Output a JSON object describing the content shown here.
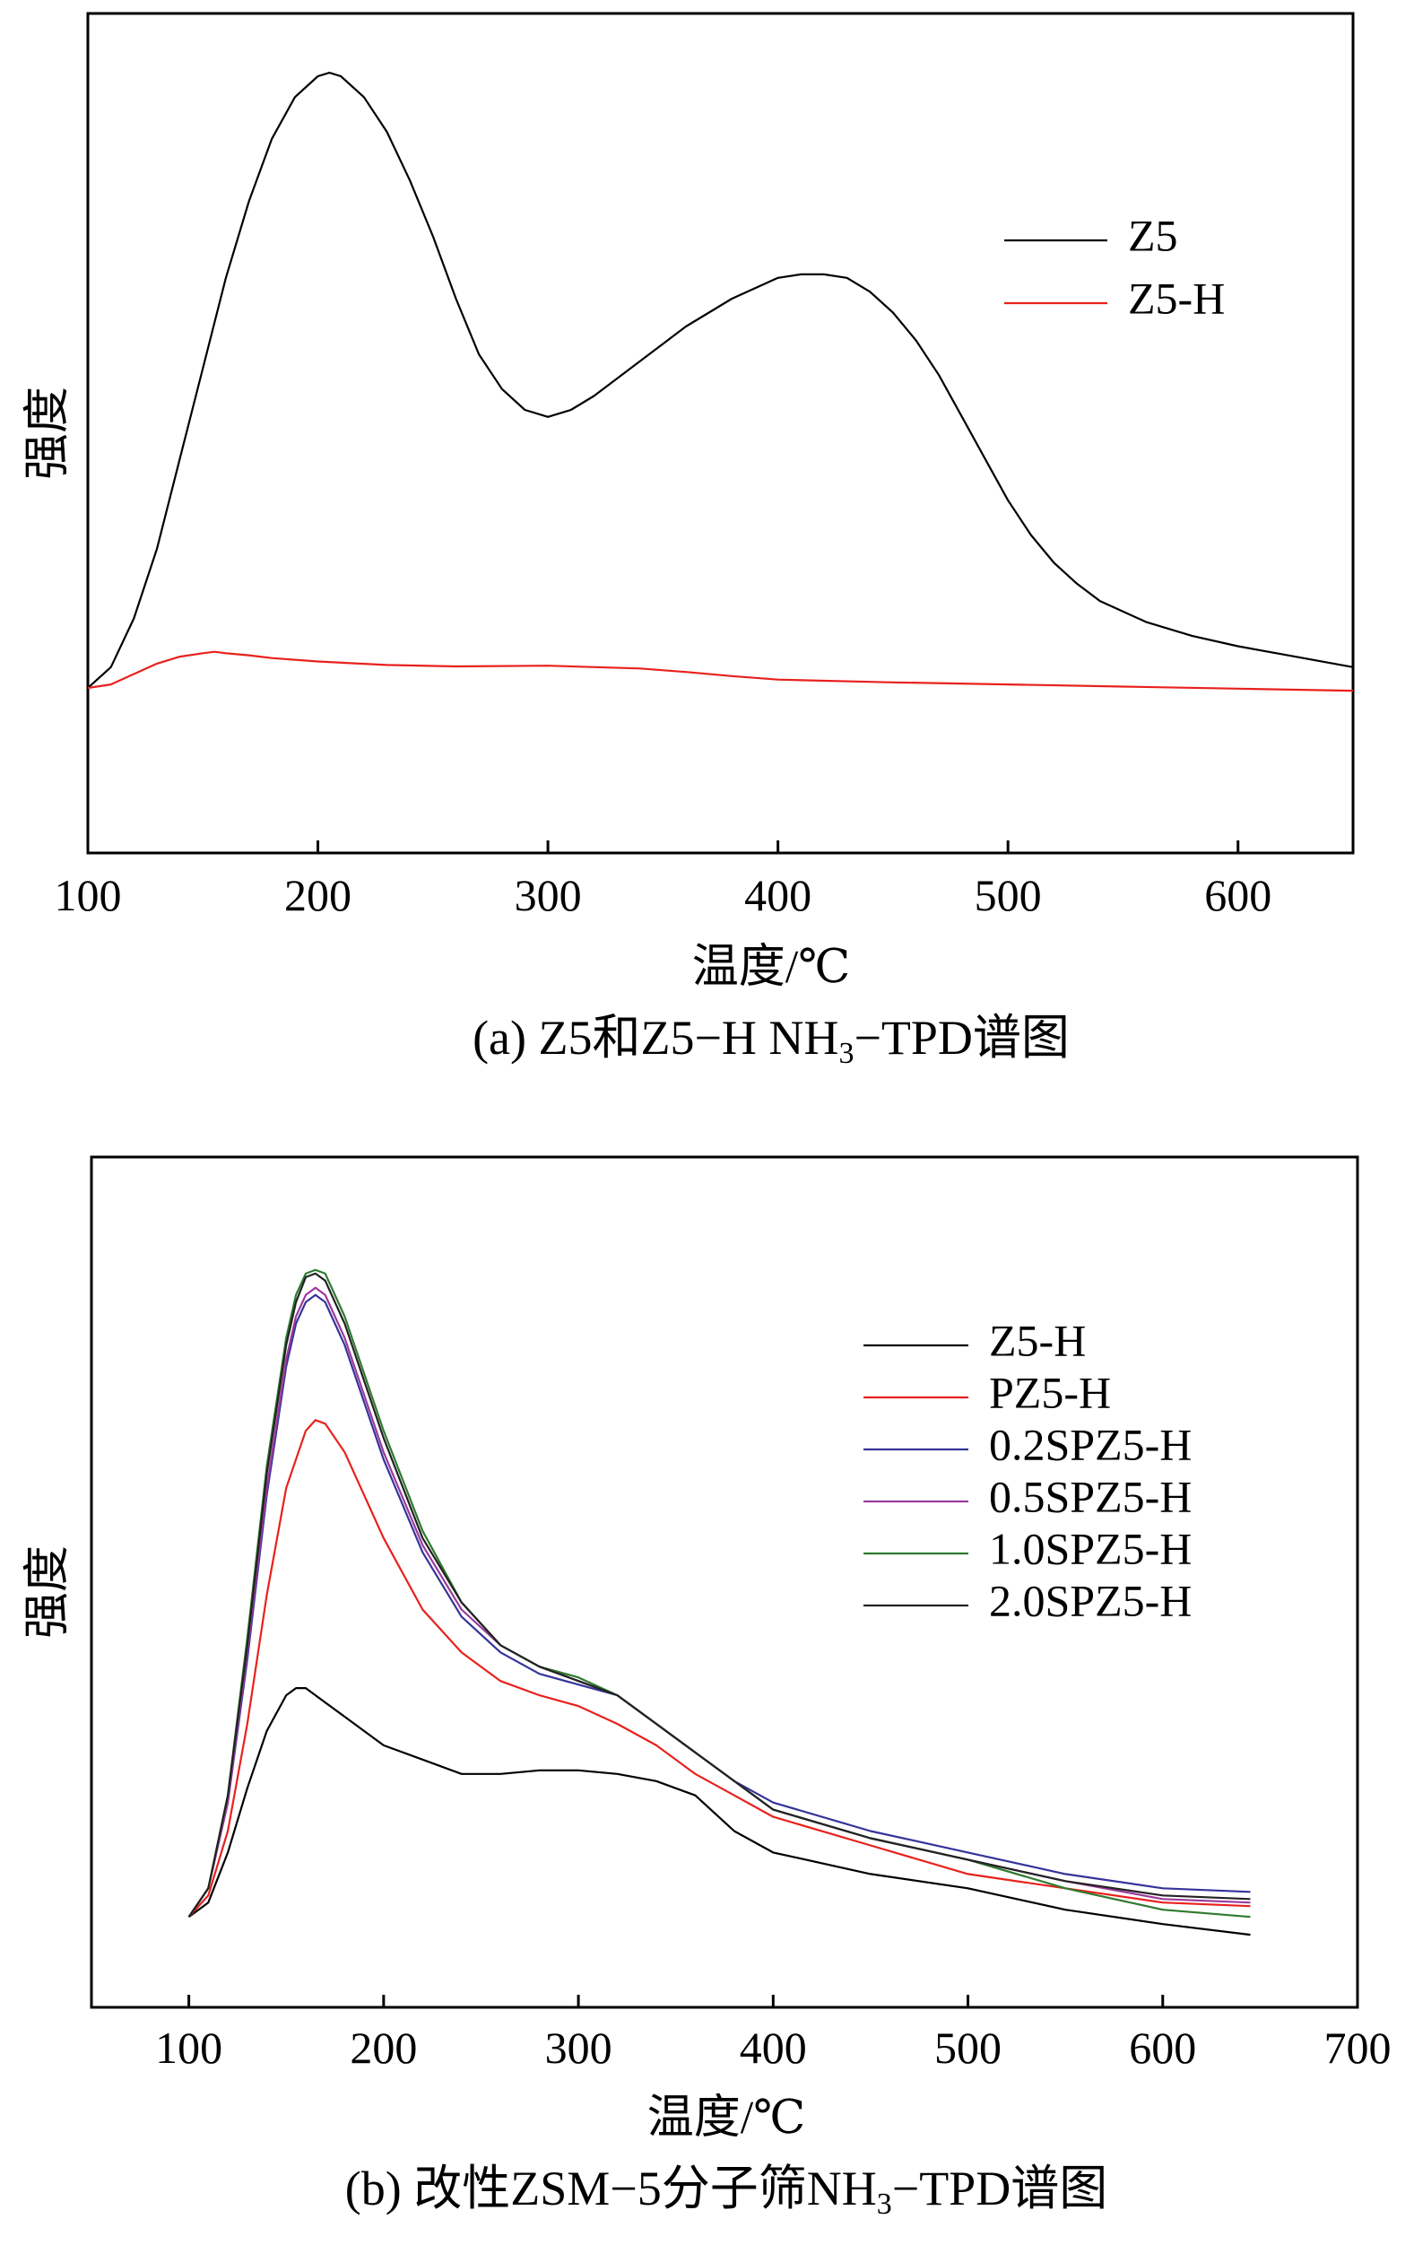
{
  "chart_data": [
    {
      "type": "line",
      "id": "a",
      "xlabel": "温度/℃",
      "ylabel": "强度",
      "caption_parts": {
        "prefix": "(a) Z5和Z5−H NH",
        "sub": "3",
        "suffix": "−TPD谱图"
      },
      "xlim": [
        100,
        650
      ],
      "xticks": [
        100,
        200,
        300,
        400,
        500,
        600
      ],
      "xtick_labels": [
        "100",
        "200",
        "300",
        "400",
        "500",
        "600"
      ],
      "ylim": [
        0,
        1
      ],
      "grid": false,
      "legend_position": "top-right",
      "series": [
        {
          "name": "Z5",
          "color": "#000000",
          "x": [
            100,
            110,
            120,
            130,
            140,
            150,
            160,
            170,
            180,
            190,
            200,
            205,
            210,
            220,
            230,
            240,
            250,
            260,
            270,
            280,
            290,
            300,
            310,
            320,
            340,
            360,
            380,
            400,
            410,
            420,
            430,
            440,
            450,
            460,
            470,
            480,
            490,
            500,
            510,
            520,
            530,
            540,
            560,
            580,
            600,
            620,
            650
          ],
          "y": [
            0.12,
            0.15,
            0.22,
            0.32,
            0.45,
            0.58,
            0.71,
            0.82,
            0.91,
            0.97,
            1.0,
            1.005,
            1.0,
            0.97,
            0.92,
            0.85,
            0.77,
            0.68,
            0.6,
            0.55,
            0.52,
            0.51,
            0.52,
            0.54,
            0.59,
            0.64,
            0.68,
            0.71,
            0.715,
            0.715,
            0.71,
            0.69,
            0.66,
            0.62,
            0.57,
            0.51,
            0.45,
            0.39,
            0.34,
            0.3,
            0.27,
            0.245,
            0.215,
            0.195,
            0.18,
            0.168,
            0.15
          ]
        },
        {
          "name": "Z5-H",
          "color": "#e8211d",
          "x": [
            100,
            110,
            120,
            130,
            140,
            150,
            155,
            160,
            170,
            180,
            200,
            230,
            260,
            300,
            340,
            360,
            380,
            400,
            450,
            500,
            550,
            600,
            650
          ],
          "y": [
            0.12,
            0.125,
            0.14,
            0.155,
            0.165,
            0.17,
            0.172,
            0.17,
            0.167,
            0.163,
            0.158,
            0.153,
            0.151,
            0.152,
            0.148,
            0.143,
            0.137,
            0.132,
            0.128,
            0.125,
            0.122,
            0.119,
            0.116
          ]
        }
      ]
    },
    {
      "type": "line",
      "id": "b",
      "xlabel": "温度/℃",
      "ylabel": "强度",
      "caption_parts": {
        "prefix": "(b) 改性ZSM−5分子筛NH",
        "sub": "3",
        "suffix": "−TPD谱图"
      },
      "xlim": [
        50,
        700
      ],
      "xticks": [
        100,
        200,
        300,
        400,
        500,
        600,
        700
      ],
      "xtick_labels": [
        "100",
        "200",
        "300",
        "400",
        "500",
        "600",
        "700"
      ],
      "ylim": [
        0,
        1
      ],
      "grid": false,
      "legend_position": "top-right",
      "series": [
        {
          "name": "Z5-H",
          "color": "#000000",
          "x": [
            100,
            110,
            120,
            130,
            140,
            150,
            155,
            160,
            170,
            180,
            200,
            220,
            240,
            260,
            280,
            300,
            320,
            340,
            360,
            380,
            400,
            450,
            500,
            550,
            600,
            645
          ],
          "y": [
            0.06,
            0.08,
            0.15,
            0.24,
            0.32,
            0.37,
            0.38,
            0.38,
            0.36,
            0.34,
            0.3,
            0.28,
            0.26,
            0.26,
            0.265,
            0.265,
            0.26,
            0.25,
            0.23,
            0.18,
            0.15,
            0.12,
            0.1,
            0.07,
            0.05,
            0.035
          ]
        },
        {
          "name": "PZ5-H",
          "color": "#e8211d",
          "x": [
            100,
            110,
            120,
            130,
            140,
            150,
            160,
            165,
            170,
            180,
            200,
            220,
            240,
            260,
            280,
            300,
            320,
            340,
            360,
            380,
            400,
            450,
            500,
            550,
            600,
            645
          ],
          "y": [
            0.06,
            0.09,
            0.18,
            0.33,
            0.51,
            0.66,
            0.74,
            0.755,
            0.75,
            0.71,
            0.59,
            0.49,
            0.43,
            0.39,
            0.37,
            0.355,
            0.33,
            0.3,
            0.26,
            0.23,
            0.2,
            0.16,
            0.12,
            0.1,
            0.08,
            0.075
          ]
        },
        {
          "name": "0.2SPZ5-H",
          "color": "#35349a",
          "x": [
            100,
            110,
            120,
            130,
            140,
            150,
            155,
            160,
            165,
            170,
            180,
            200,
            220,
            240,
            260,
            280,
            300,
            320,
            340,
            360,
            380,
            400,
            450,
            500,
            550,
            600,
            645
          ],
          "y": [
            0.06,
            0.1,
            0.22,
            0.42,
            0.65,
            0.83,
            0.89,
            0.92,
            0.93,
            0.92,
            0.86,
            0.7,
            0.57,
            0.48,
            0.43,
            0.4,
            0.385,
            0.37,
            0.33,
            0.29,
            0.25,
            0.22,
            0.18,
            0.15,
            0.12,
            0.1,
            0.095
          ]
        },
        {
          "name": "0.5SPZ5-H",
          "color": "#9b3a9c",
          "x": [
            100,
            110,
            120,
            130,
            140,
            150,
            155,
            160,
            165,
            170,
            180,
            200,
            220,
            240,
            260,
            280,
            300,
            320,
            340,
            360,
            380,
            400,
            450,
            500,
            550,
            600,
            645
          ],
          "y": [
            0.06,
            0.1,
            0.22,
            0.43,
            0.66,
            0.84,
            0.9,
            0.93,
            0.94,
            0.93,
            0.87,
            0.71,
            0.58,
            0.49,
            0.44,
            0.41,
            0.39,
            0.37,
            0.33,
            0.29,
            0.25,
            0.21,
            0.17,
            0.14,
            0.11,
            0.085,
            0.08
          ]
        },
        {
          "name": "1.0SPZ5-H",
          "color": "#2f7a2f",
          "x": [
            100,
            110,
            120,
            130,
            140,
            150,
            155,
            160,
            165,
            170,
            180,
            200,
            220,
            240,
            260,
            280,
            300,
            320,
            340,
            360,
            380,
            400,
            450,
            500,
            550,
            600,
            645
          ],
          "y": [
            0.06,
            0.1,
            0.23,
            0.45,
            0.69,
            0.87,
            0.93,
            0.96,
            0.965,
            0.96,
            0.9,
            0.74,
            0.6,
            0.5,
            0.44,
            0.41,
            0.395,
            0.37,
            0.33,
            0.29,
            0.25,
            0.21,
            0.17,
            0.14,
            0.1,
            0.07,
            0.06
          ]
        },
        {
          "name": "2.0SPZ5-H",
          "color": "#222222",
          "x": [
            100,
            110,
            120,
            130,
            140,
            150,
            155,
            160,
            165,
            170,
            180,
            200,
            220,
            240,
            260,
            280,
            300,
            320,
            340,
            360,
            380,
            400,
            450,
            500,
            550,
            600,
            645
          ],
          "y": [
            0.06,
            0.1,
            0.23,
            0.44,
            0.68,
            0.86,
            0.92,
            0.955,
            0.96,
            0.95,
            0.89,
            0.73,
            0.59,
            0.5,
            0.44,
            0.41,
            0.39,
            0.37,
            0.33,
            0.29,
            0.25,
            0.21,
            0.17,
            0.14,
            0.11,
            0.09,
            0.085
          ]
        }
      ]
    }
  ]
}
